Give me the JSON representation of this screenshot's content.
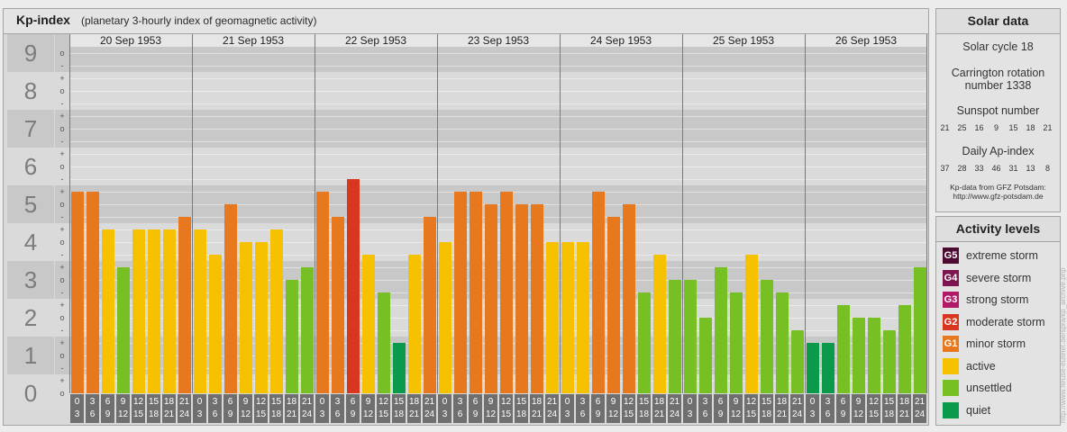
{
  "chart_data": {
    "type": "bar",
    "title": "Kp-index",
    "subtitle": "(planetary 3-hourly index of geomagnetic activity)",
    "ylim": [
      0,
      9
    ],
    "grid": true,
    "legend": "right",
    "y_tick_labels": [
      0,
      1,
      2,
      3,
      4,
      5,
      6,
      7,
      8,
      9
    ],
    "y_minor_symbols": [
      "o",
      "+",
      "-"
    ],
    "hour_labels": [
      [
        0,
        3
      ],
      [
        3,
        6
      ],
      [
        6,
        9
      ],
      [
        9,
        12
      ],
      [
        12,
        15
      ],
      [
        15,
        18
      ],
      [
        18,
        21
      ],
      [
        21,
        24
      ]
    ],
    "days": [
      {
        "date": "20 Sep 1953",
        "kp": [
          5.33,
          5.33,
          4.33,
          3.33,
          4.33,
          4.33,
          4.33,
          4.67
        ]
      },
      {
        "date": "21 Sep 1953",
        "kp": [
          4.33,
          3.67,
          5.0,
          4.0,
          4.0,
          4.33,
          3.0,
          3.33
        ]
      },
      {
        "date": "22 Sep 1953",
        "kp": [
          5.33,
          4.67,
          5.67,
          3.67,
          2.67,
          1.33,
          3.67,
          4.67
        ]
      },
      {
        "date": "23 Sep 1953",
        "kp": [
          4.0,
          5.33,
          5.33,
          5.0,
          5.33,
          5.0,
          5.0,
          4.0
        ]
      },
      {
        "date": "24 Sep 1953",
        "kp": [
          4.0,
          4.0,
          5.33,
          4.67,
          5.0,
          2.67,
          3.67,
          3.0
        ]
      },
      {
        "date": "25 Sep 1953",
        "kp": [
          3.0,
          2.0,
          3.33,
          2.67,
          3.67,
          3.0,
          2.67,
          1.67
        ]
      },
      {
        "date": "26 Sep 1953",
        "kp": [
          1.33,
          1.33,
          2.33,
          2.0,
          2.0,
          1.67,
          2.33,
          3.33
        ]
      }
    ]
  },
  "solar_data": {
    "title": "Solar data",
    "solar_cycle": "Solar cycle 18",
    "carrington_line1": "Carrington rotation",
    "carrington_line2": "number 1338",
    "sunspot_label": "Sunspot number",
    "sunspot_numbers": [
      21,
      25,
      16,
      9,
      15,
      18,
      21
    ],
    "ap_label": "Daily Ap-index",
    "ap_values": [
      37,
      28,
      33,
      46,
      31,
      13,
      8
    ],
    "source_line1": "Kp-data from GFZ Potsdam:",
    "source_line2": "http://www.gfz-potsdam.de"
  },
  "activity_levels": {
    "title": "Activity levels",
    "items": [
      {
        "badge": "G5",
        "label": "extreme storm",
        "color": "#4e0b31"
      },
      {
        "badge": "G4",
        "label": "severe storm",
        "color": "#7c1550"
      },
      {
        "badge": "G3",
        "label": "strong storm",
        "color": "#b01a66"
      },
      {
        "badge": "G2",
        "label": "moderate storm",
        "color": "#d8361f"
      },
      {
        "badge": "G1",
        "label": "minor storm",
        "color": "#e8781d"
      },
      {
        "label": "active",
        "color": "#f6c200"
      },
      {
        "label": "unsettled",
        "color": "#77c024"
      },
      {
        "label": "quiet",
        "color": "#0b9a4b"
      }
    ]
  },
  "side_url": "http://www.fleuse-eutelet.de/spra/kp_archive.php"
}
